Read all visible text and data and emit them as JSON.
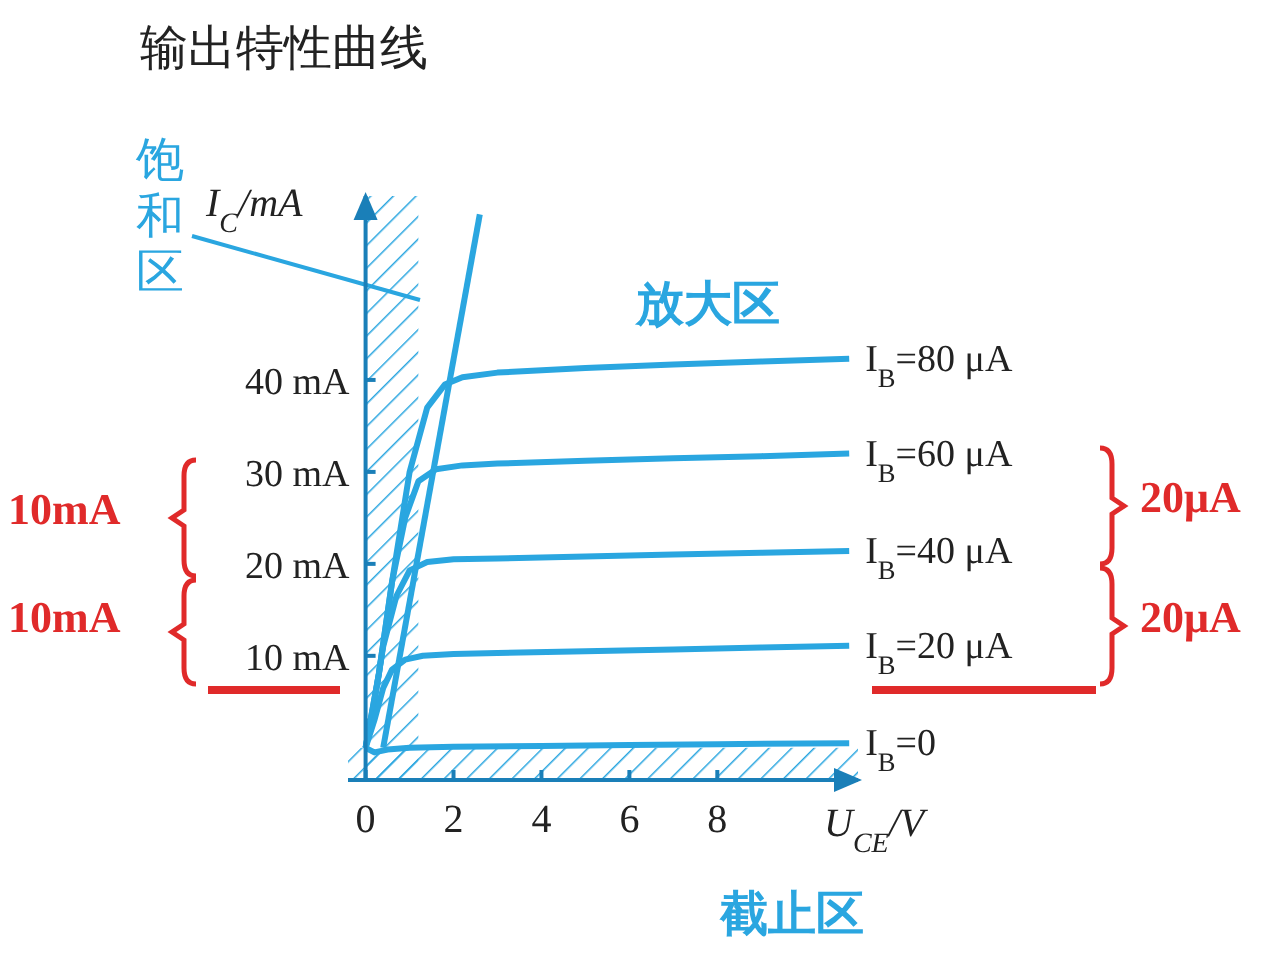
{
  "chart_data": {
    "type": "line",
    "title": "输出特性曲线",
    "xlabel": "U$_{CE}$/V",
    "ylabel": "I$_{C}$/mA",
    "xlim": [
      -0.4,
      11.2
    ],
    "ylim": [
      -3.5,
      60
    ],
    "xticks": [
      0,
      2,
      4,
      6,
      8
    ],
    "yticks": [
      {
        "value": 10,
        "label": "10 mA"
      },
      {
        "value": 20,
        "label": "20 mA"
      },
      {
        "value": 30,
        "label": "30 mA"
      },
      {
        "value": 40,
        "label": "40 mA"
      }
    ],
    "series": [
      {
        "name": "I$_{B}$=80 μA",
        "color": "#2aa6e0",
        "x": [
          0,
          0.3,
          0.6,
          1.0,
          1.4,
          1.8,
          2.2,
          3,
          5,
          7,
          9,
          11
        ],
        "values": [
          0,
          8,
          18,
          30,
          37,
          39.5,
          40.3,
          40.8,
          41.3,
          41.7,
          42,
          42.3
        ]
      },
      {
        "name": "I$_{B}$=60 μA",
        "color": "#2aa6e0",
        "x": [
          0,
          0.3,
          0.6,
          0.9,
          1.2,
          1.6,
          2.2,
          3,
          5,
          7,
          9,
          11
        ],
        "values": [
          0,
          8,
          18,
          25,
          29,
          30.3,
          30.7,
          30.9,
          31.2,
          31.5,
          31.7,
          32
        ]
      },
      {
        "name": "I$_{B}$=40 μA",
        "color": "#2aa6e0",
        "x": [
          0,
          0.2,
          0.4,
          0.7,
          1.0,
          1.4,
          2,
          3,
          5,
          7,
          9,
          11
        ],
        "values": [
          0,
          5,
          11,
          16.5,
          19.3,
          20.2,
          20.5,
          20.6,
          20.8,
          21,
          21.2,
          21.4
        ]
      },
      {
        "name": "I$_{B}$=20 μA",
        "color": "#2aa6e0",
        "x": [
          0,
          0.2,
          0.4,
          0.6,
          0.9,
          1.3,
          2,
          3,
          5,
          7,
          9,
          11
        ],
        "values": [
          0,
          3,
          6.5,
          8.5,
          9.6,
          10,
          10.2,
          10.3,
          10.5,
          10.7,
          10.9,
          11.1
        ]
      },
      {
        "name": "I$_{B}$=0",
        "color": "#2aa6e0",
        "x": [
          0,
          0.2,
          0.5,
          1,
          2,
          4,
          6,
          8,
          11
        ],
        "values": [
          0,
          -0.5,
          -0.2,
          0,
          0.1,
          0.2,
          0.3,
          0.4,
          0.5
        ]
      },
      {
        "type": "line",
        "color": "#2aa6e0",
        "x": [
          0.4,
          2.6
        ],
        "values": [
          0,
          58
        ]
      }
    ],
    "bands": [
      {
        "axis": "x",
        "from": 0,
        "to": 1.2,
        "label": "饱和区",
        "color": "#2aa6e0"
      },
      {
        "axis": "y",
        "from": -3.5,
        "to": 0,
        "label": "截止区",
        "color": "#2aa6e0"
      }
    ],
    "annotations": [
      "放大区",
      "10mA",
      "10mA",
      "20μA",
      "20μA"
    ]
  }
}
